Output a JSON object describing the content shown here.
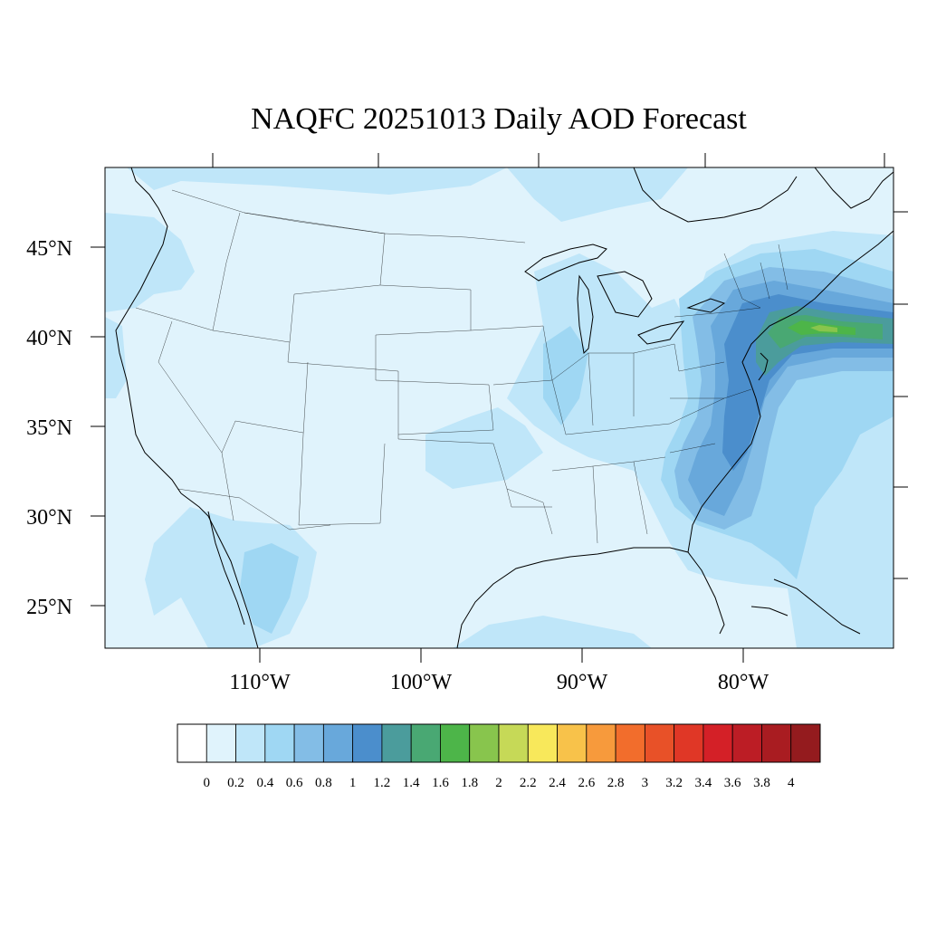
{
  "title": "NAQFC 20251013 Daily AOD Forecast",
  "map": {
    "lat_labels": [
      "45°N",
      "40°N",
      "35°N",
      "30°N",
      "25°N"
    ],
    "lon_labels": [
      "110°W",
      "100°W",
      "90°W",
      "80°W"
    ]
  },
  "legend": {
    "colors": [
      "#ffffff",
      "#e0f3fc",
      "#bfe6f9",
      "#9fd7f3",
      "#83bde6",
      "#68a8db",
      "#4b8ecc",
      "#4b9c9c",
      "#49a873",
      "#4db549",
      "#88c54d",
      "#c6d957",
      "#f8e85b",
      "#f8c24a",
      "#f79a3c",
      "#f26d2c",
      "#e85128",
      "#e03726",
      "#d42027",
      "#bc1d25",
      "#a91c21",
      "#941b1e"
    ],
    "labels": [
      "0",
      "0.2",
      "0.4",
      "0.6",
      "0.8",
      "1",
      "1.2",
      "1.4",
      "1.6",
      "1.8",
      "2",
      "2.2",
      "2.4",
      "2.6",
      "2.8",
      "3",
      "3.2",
      "3.4",
      "3.6",
      "3.8",
      "4"
    ]
  }
}
